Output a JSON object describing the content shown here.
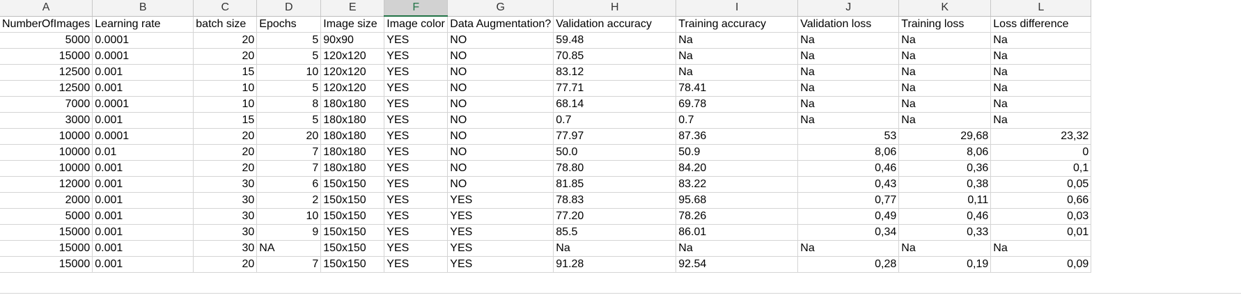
{
  "columns": [
    "A",
    "B",
    "C",
    "D",
    "E",
    "F",
    "G",
    "H",
    "I",
    "J",
    "K",
    "L"
  ],
  "selected_column": "F",
  "headers": [
    "NumberOfImages",
    "Learning rate",
    "batch size",
    "Epochs",
    "Image size",
    "Image color",
    "Data Augmentation?",
    "Validation accuracy",
    "Training accuracy",
    "Validation loss",
    "Training loss",
    "Loss difference"
  ],
  "rows": [
    [
      "5000",
      "0.0001",
      "20",
      "5",
      "90x90",
      "YES",
      "NO",
      "59.48",
      "Na",
      "Na",
      "Na",
      "Na"
    ],
    [
      "15000",
      "0.0001",
      "20",
      "5",
      "120x120",
      "YES",
      "NO",
      "70.85",
      "Na",
      "Na",
      "Na",
      "Na"
    ],
    [
      "12500",
      "0.001",
      "15",
      "10",
      "120x120",
      "YES",
      "NO",
      "83.12",
      "Na",
      "Na",
      "Na",
      "Na"
    ],
    [
      "12500",
      "0.001",
      "10",
      "5",
      "120x120",
      "YES",
      "NO",
      "77.71",
      "78.41",
      "Na",
      "Na",
      "Na"
    ],
    [
      "7000",
      "0.0001",
      "10",
      "8",
      "180x180",
      "YES",
      "NO",
      "68.14",
      "69.78",
      "Na",
      "Na",
      "Na"
    ],
    [
      "3000",
      "0.001",
      "15",
      "5",
      "180x180",
      "YES",
      "NO",
      "0.7",
      "0.7",
      "Na",
      "Na",
      "Na"
    ],
    [
      "10000",
      "0.0001",
      "20",
      "20",
      "180x180",
      "YES",
      "NO",
      "77.97",
      "87.36",
      "53",
      "29,68",
      "23,32"
    ],
    [
      "10000",
      "0.01",
      "20",
      "7",
      "180x180",
      "YES",
      "NO",
      "50.0",
      "50.9",
      "8,06",
      "8,06",
      "0"
    ],
    [
      "10000",
      "0.001",
      "20",
      "7",
      "180x180",
      "YES",
      "NO",
      "78.80",
      "84.20",
      "0,46",
      "0,36",
      "0,1"
    ],
    [
      "12000",
      "0.001",
      "30",
      "6",
      "150x150",
      "YES",
      "NO",
      "81.85",
      "83.22",
      "0,43",
      "0,38",
      "0,05"
    ],
    [
      "2000",
      "0.001",
      "30",
      "2",
      "150x150",
      "YES",
      "YES",
      "78.83",
      "95.68",
      "0,77",
      "0,11",
      "0,66"
    ],
    [
      "5000",
      "0.001",
      "30",
      "10",
      "150x150",
      "YES",
      "YES",
      "77.20",
      "78.26",
      "0,49",
      "0,46",
      "0,03"
    ],
    [
      "15000",
      "0.001",
      "30",
      "9",
      "150x150",
      "YES",
      "YES",
      "85.5",
      "86.01",
      "0,34",
      "0,33",
      "0,01"
    ],
    [
      "15000",
      "0.001",
      "30",
      "NA",
      "150x150",
      "YES",
      "YES",
      "Na",
      "Na",
      "Na",
      "Na",
      "Na"
    ],
    [
      "15000",
      "0.001",
      "20",
      "7",
      "150x150",
      "YES",
      "YES",
      "91.28",
      "92.54",
      "0,28",
      "0,19",
      "0,09"
    ]
  ]
}
